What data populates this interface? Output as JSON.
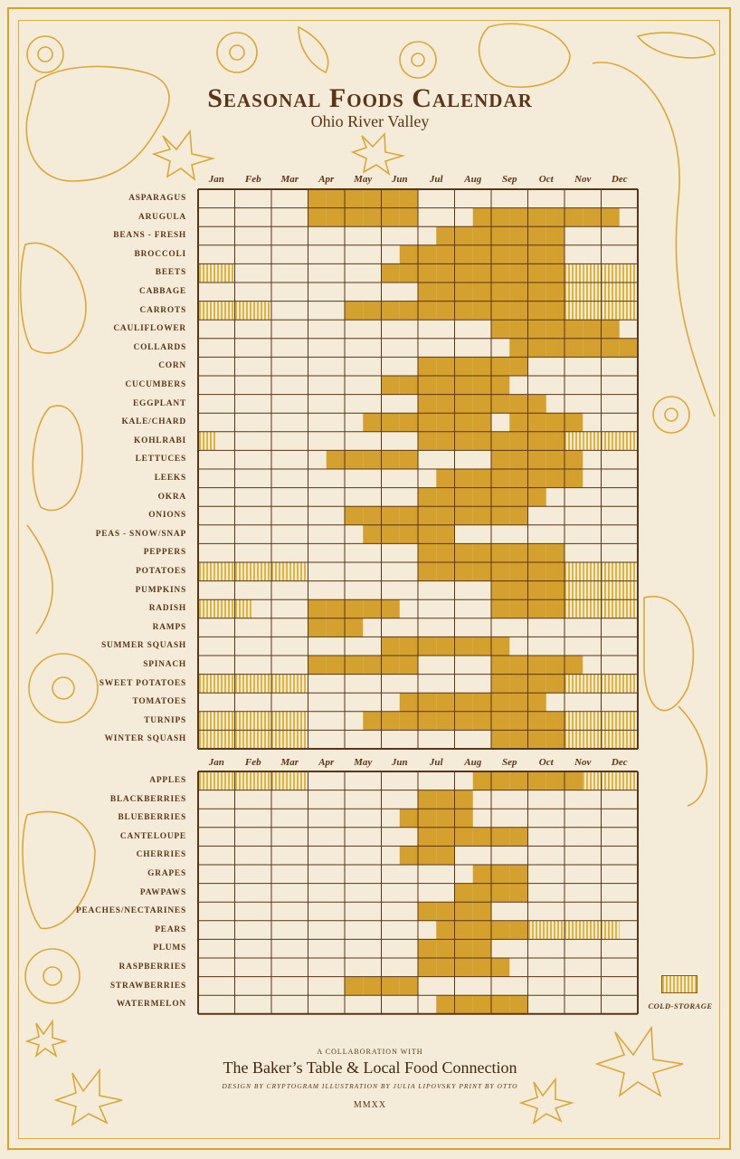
{
  "title": "Seasonal Foods Calendar",
  "subtitle": "Ohio River Valley",
  "months": [
    "Jan",
    "Feb",
    "Mar",
    "Apr",
    "May",
    "Jun",
    "Jul",
    "Aug",
    "Sep",
    "Oct",
    "Nov",
    "Dec"
  ],
  "legend": {
    "cold_storage_label": "COLD-STORAGE"
  },
  "footer": {
    "collab": "A COLLABORATION WITH",
    "partners": "The Baker’s Table & Local Food Connection",
    "credits": "DESIGN BY CRYPTOGRAM    ILLUSTRATION BY JULIA LIPOVSKY    PRINT BY OTTO",
    "year": "MMXX"
  },
  "colors": {
    "fresh": "#d4a12f",
    "grid": "#5a3517",
    "background": "#f4ecd8",
    "ornament": "#d9a83a"
  },
  "chart_data": {
    "type": "table",
    "note_cell_values": "each month has 2 half-month cells: 0 = none, 1 = fresh (gold), 2 = cold-storage (striped)",
    "vegetables": [
      {
        "name": "ASPARAGUS",
        "cells": [
          0,
          0,
          0,
          0,
          0,
          0,
          1,
          1,
          1,
          1,
          1,
          1,
          0,
          0,
          0,
          0,
          0,
          0,
          0,
          0,
          0,
          0,
          0,
          0
        ]
      },
      {
        "name": "ARUGULA",
        "cells": [
          0,
          0,
          0,
          0,
          0,
          0,
          1,
          1,
          1,
          1,
          1,
          1,
          0,
          0,
          0,
          1,
          1,
          1,
          1,
          1,
          1,
          1,
          1,
          0
        ]
      },
      {
        "name": "BEANS - FRESH",
        "cells": [
          0,
          0,
          0,
          0,
          0,
          0,
          0,
          0,
          0,
          0,
          0,
          0,
          0,
          1,
          1,
          1,
          1,
          1,
          1,
          1,
          0,
          0,
          0,
          0
        ]
      },
      {
        "name": "BROCCOLI",
        "cells": [
          0,
          0,
          0,
          0,
          0,
          0,
          0,
          0,
          0,
          0,
          0,
          1,
          1,
          1,
          1,
          1,
          1,
          1,
          1,
          1,
          0,
          0,
          0,
          0
        ]
      },
      {
        "name": "BEETS",
        "cells": [
          2,
          2,
          0,
          0,
          0,
          0,
          0,
          0,
          0,
          0,
          1,
          1,
          1,
          1,
          1,
          1,
          1,
          1,
          1,
          1,
          2,
          2,
          2,
          2
        ]
      },
      {
        "name": "CABBAGE",
        "cells": [
          0,
          0,
          0,
          0,
          0,
          0,
          0,
          0,
          0,
          0,
          0,
          0,
          1,
          1,
          1,
          1,
          1,
          1,
          1,
          1,
          2,
          2,
          2,
          2
        ]
      },
      {
        "name": "CARROTS",
        "cells": [
          2,
          2,
          2,
          2,
          0,
          0,
          0,
          0,
          1,
          1,
          1,
          1,
          1,
          1,
          1,
          1,
          1,
          1,
          1,
          1,
          2,
          2,
          2,
          2
        ]
      },
      {
        "name": "CAULIFLOWER",
        "cells": [
          0,
          0,
          0,
          0,
          0,
          0,
          0,
          0,
          0,
          0,
          0,
          0,
          0,
          0,
          0,
          0,
          1,
          1,
          1,
          1,
          1,
          1,
          1,
          0
        ]
      },
      {
        "name": "COLLARDS",
        "cells": [
          0,
          0,
          0,
          0,
          0,
          0,
          0,
          0,
          0,
          0,
          0,
          0,
          0,
          0,
          0,
          0,
          0,
          1,
          1,
          1,
          1,
          1,
          1,
          1
        ]
      },
      {
        "name": "CORN",
        "cells": [
          0,
          0,
          0,
          0,
          0,
          0,
          0,
          0,
          0,
          0,
          0,
          0,
          1,
          1,
          1,
          1,
          1,
          1,
          0,
          0,
          0,
          0,
          0,
          0
        ]
      },
      {
        "name": "CUCUMBERS",
        "cells": [
          0,
          0,
          0,
          0,
          0,
          0,
          0,
          0,
          0,
          0,
          1,
          1,
          1,
          1,
          1,
          1,
          1,
          0,
          0,
          0,
          0,
          0,
          0,
          0
        ]
      },
      {
        "name": "EGGPLANT",
        "cells": [
          0,
          0,
          0,
          0,
          0,
          0,
          0,
          0,
          0,
          0,
          0,
          0,
          1,
          1,
          1,
          1,
          1,
          1,
          1,
          0,
          0,
          0,
          0,
          0
        ]
      },
      {
        "name": "KALE/CHARD",
        "cells": [
          0,
          0,
          0,
          0,
          0,
          0,
          0,
          0,
          0,
          1,
          1,
          1,
          1,
          1,
          1,
          1,
          0,
          1,
          1,
          1,
          1,
          0,
          0,
          0
        ]
      },
      {
        "name": "KOHLRABI",
        "cells": [
          2,
          0,
          0,
          0,
          0,
          0,
          0,
          0,
          0,
          0,
          0,
          0,
          1,
          1,
          1,
          1,
          1,
          1,
          1,
          1,
          2,
          2,
          2,
          2
        ]
      },
      {
        "name": "LETTUCES",
        "cells": [
          0,
          0,
          0,
          0,
          0,
          0,
          0,
          1,
          1,
          1,
          1,
          1,
          0,
          0,
          0,
          0,
          1,
          1,
          1,
          1,
          1,
          0,
          0,
          0
        ]
      },
      {
        "name": "LEEKS",
        "cells": [
          0,
          0,
          0,
          0,
          0,
          0,
          0,
          0,
          0,
          0,
          0,
          0,
          0,
          1,
          1,
          1,
          1,
          1,
          1,
          1,
          1,
          0,
          0,
          0
        ]
      },
      {
        "name": "OKRA",
        "cells": [
          0,
          0,
          0,
          0,
          0,
          0,
          0,
          0,
          0,
          0,
          0,
          0,
          1,
          1,
          1,
          1,
          1,
          1,
          1,
          0,
          0,
          0,
          0,
          0
        ]
      },
      {
        "name": "ONIONS",
        "cells": [
          0,
          0,
          0,
          0,
          0,
          0,
          0,
          0,
          1,
          1,
          1,
          1,
          1,
          1,
          1,
          1,
          1,
          1,
          0,
          0,
          0,
          0,
          0,
          0
        ]
      },
      {
        "name": "PEAS - SNOW/SNAP",
        "cells": [
          0,
          0,
          0,
          0,
          0,
          0,
          0,
          0,
          0,
          1,
          1,
          1,
          1,
          1,
          0,
          0,
          0,
          0,
          0,
          0,
          0,
          0,
          0,
          0
        ]
      },
      {
        "name": "PEPPERS",
        "cells": [
          0,
          0,
          0,
          0,
          0,
          0,
          0,
          0,
          0,
          0,
          0,
          0,
          1,
          1,
          1,
          1,
          1,
          1,
          1,
          1,
          0,
          0,
          0,
          0
        ]
      },
      {
        "name": "POTATOES",
        "cells": [
          2,
          2,
          2,
          2,
          2,
          2,
          0,
          0,
          0,
          0,
          0,
          0,
          1,
          1,
          1,
          1,
          1,
          1,
          1,
          1,
          2,
          2,
          2,
          2
        ]
      },
      {
        "name": "PUMPKINS",
        "cells": [
          0,
          0,
          0,
          0,
          0,
          0,
          0,
          0,
          0,
          0,
          0,
          0,
          0,
          0,
          0,
          0,
          1,
          1,
          1,
          1,
          2,
          2,
          2,
          2
        ]
      },
      {
        "name": "RADISH",
        "cells": [
          2,
          2,
          2,
          0,
          0,
          0,
          1,
          1,
          1,
          1,
          1,
          0,
          0,
          0,
          0,
          0,
          1,
          1,
          1,
          1,
          2,
          2,
          2,
          2
        ]
      },
      {
        "name": "RAMPS",
        "cells": [
          0,
          0,
          0,
          0,
          0,
          0,
          1,
          1,
          1,
          0,
          0,
          0,
          0,
          0,
          0,
          0,
          0,
          0,
          0,
          0,
          0,
          0,
          0,
          0
        ]
      },
      {
        "name": "SUMMER SQUASH",
        "cells": [
          0,
          0,
          0,
          0,
          0,
          0,
          0,
          0,
          0,
          0,
          1,
          1,
          1,
          1,
          1,
          1,
          1,
          0,
          0,
          0,
          0,
          0,
          0,
          0
        ]
      },
      {
        "name": "SPINACH",
        "cells": [
          0,
          0,
          0,
          0,
          0,
          0,
          1,
          1,
          1,
          1,
          1,
          1,
          0,
          0,
          0,
          0,
          1,
          1,
          1,
          1,
          1,
          0,
          0,
          0
        ]
      },
      {
        "name": "SWEET POTATOES",
        "cells": [
          2,
          2,
          2,
          2,
          2,
          2,
          0,
          0,
          0,
          0,
          0,
          0,
          0,
          0,
          0,
          0,
          1,
          1,
          1,
          1,
          2,
          2,
          2,
          2
        ]
      },
      {
        "name": "TOMATOES",
        "cells": [
          0,
          0,
          0,
          0,
          0,
          0,
          0,
          0,
          0,
          0,
          0,
          1,
          1,
          1,
          1,
          1,
          1,
          1,
          1,
          0,
          0,
          0,
          0,
          0
        ]
      },
      {
        "name": "TURNIPS",
        "cells": [
          2,
          2,
          2,
          2,
          2,
          2,
          0,
          0,
          0,
          1,
          1,
          1,
          1,
          1,
          1,
          1,
          1,
          1,
          1,
          1,
          2,
          2,
          2,
          2
        ]
      },
      {
        "name": "WINTER SQUASH",
        "cells": [
          2,
          2,
          2,
          2,
          2,
          2,
          0,
          0,
          0,
          0,
          0,
          0,
          0,
          0,
          0,
          0,
          1,
          1,
          1,
          1,
          2,
          2,
          2,
          2
        ]
      }
    ],
    "fruits": [
      {
        "name": "APPLES",
        "cells": [
          2,
          2,
          2,
          2,
          2,
          2,
          0,
          0,
          0,
          0,
          0,
          0,
          0,
          0,
          0,
          1,
          1,
          1,
          1,
          1,
          1,
          2,
          2,
          2
        ]
      },
      {
        "name": "BLACKBERRIES",
        "cells": [
          0,
          0,
          0,
          0,
          0,
          0,
          0,
          0,
          0,
          0,
          0,
          0,
          1,
          1,
          1,
          0,
          0,
          0,
          0,
          0,
          0,
          0,
          0,
          0
        ]
      },
      {
        "name": "BLUEBERRIES",
        "cells": [
          0,
          0,
          0,
          0,
          0,
          0,
          0,
          0,
          0,
          0,
          0,
          1,
          1,
          1,
          1,
          0,
          0,
          0,
          0,
          0,
          0,
          0,
          0,
          0
        ]
      },
      {
        "name": "CANTELOUPE",
        "cells": [
          0,
          0,
          0,
          0,
          0,
          0,
          0,
          0,
          0,
          0,
          0,
          0,
          1,
          1,
          1,
          1,
          1,
          1,
          0,
          0,
          0,
          0,
          0,
          0
        ]
      },
      {
        "name": "CHERRIES",
        "cells": [
          0,
          0,
          0,
          0,
          0,
          0,
          0,
          0,
          0,
          0,
          0,
          1,
          1,
          1,
          0,
          0,
          0,
          0,
          0,
          0,
          0,
          0,
          0,
          0
        ]
      },
      {
        "name": "GRAPES",
        "cells": [
          0,
          0,
          0,
          0,
          0,
          0,
          0,
          0,
          0,
          0,
          0,
          0,
          0,
          0,
          0,
          1,
          1,
          1,
          0,
          0,
          0,
          0,
          0,
          0
        ]
      },
      {
        "name": "PAWPAWS",
        "cells": [
          0,
          0,
          0,
          0,
          0,
          0,
          0,
          0,
          0,
          0,
          0,
          0,
          0,
          0,
          1,
          1,
          1,
          1,
          0,
          0,
          0,
          0,
          0,
          0
        ]
      },
      {
        "name": "PEACHES/NECTARINES",
        "cells": [
          0,
          0,
          0,
          0,
          0,
          0,
          0,
          0,
          0,
          0,
          0,
          0,
          1,
          1,
          1,
          1,
          0,
          0,
          0,
          0,
          0,
          0,
          0,
          0
        ]
      },
      {
        "name": "PEARS",
        "cells": [
          0,
          0,
          0,
          0,
          0,
          0,
          0,
          0,
          0,
          0,
          0,
          0,
          0,
          1,
          1,
          1,
          1,
          1,
          2,
          2,
          2,
          2,
          2,
          0
        ]
      },
      {
        "name": "PLUMS",
        "cells": [
          0,
          0,
          0,
          0,
          0,
          0,
          0,
          0,
          0,
          0,
          0,
          0,
          1,
          1,
          1,
          1,
          0,
          0,
          0,
          0,
          0,
          0,
          0,
          0
        ]
      },
      {
        "name": "RASPBERRIES",
        "cells": [
          0,
          0,
          0,
          0,
          0,
          0,
          0,
          0,
          0,
          0,
          0,
          0,
          1,
          1,
          1,
          1,
          1,
          0,
          0,
          0,
          0,
          0,
          0,
          0
        ]
      },
      {
        "name": "STRAWBERRIES",
        "cells": [
          0,
          0,
          0,
          0,
          0,
          0,
          0,
          0,
          1,
          1,
          1,
          1,
          0,
          0,
          0,
          0,
          0,
          0,
          0,
          0,
          0,
          0,
          0,
          0
        ]
      },
      {
        "name": "WATERMELON",
        "cells": [
          0,
          0,
          0,
          0,
          0,
          0,
          0,
          0,
          0,
          0,
          0,
          0,
          0,
          1,
          1,
          1,
          1,
          1,
          0,
          0,
          0,
          0,
          0,
          0
        ]
      }
    ]
  }
}
